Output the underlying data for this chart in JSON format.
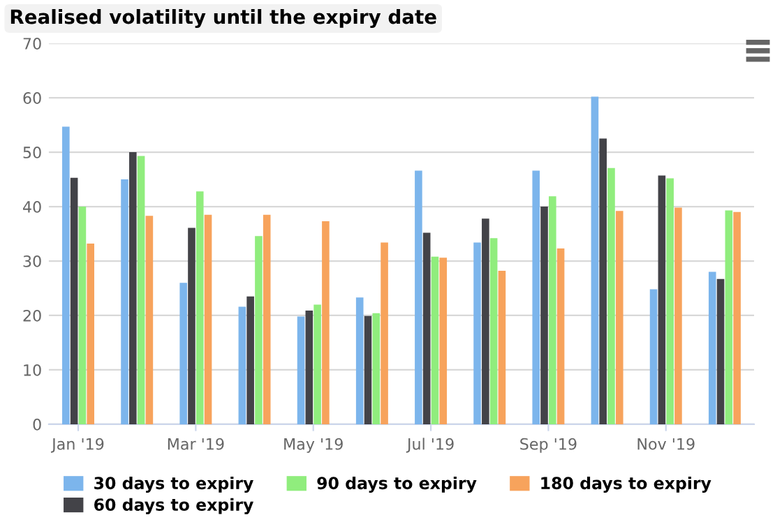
{
  "chart_data": {
    "type": "bar",
    "title": "Realised volatility until the expiry date",
    "categories": [
      "Jan '19",
      null,
      "Mar '19",
      null,
      "May '19",
      null,
      "Jul '19",
      null,
      "Sep '19",
      null,
      "Nov '19",
      null
    ],
    "series": [
      {
        "name": "30 days to expiry",
        "color": "#7cb5ec",
        "values": [
          54.7,
          45,
          26,
          21.6,
          19.8,
          23.3,
          46.6,
          33.4,
          46.6,
          60.2,
          24.8,
          28
        ]
      },
      {
        "name": "60 days to expiry",
        "color": "#434348",
        "values": [
          45.3,
          50,
          36.1,
          23.5,
          20.9,
          19.9,
          35.2,
          37.8,
          40,
          52.5,
          45.7,
          26.7
        ]
      },
      {
        "name": "90 days to expiry",
        "color": "#90ed7d",
        "values": [
          40,
          49.3,
          42.8,
          34.6,
          22,
          20.4,
          30.8,
          34.2,
          41.9,
          47.1,
          45.2,
          39.3
        ]
      },
      {
        "name": "180 days to expiry",
        "color": "#f7a35c",
        "values": [
          33.2,
          38.3,
          38.5,
          38.5,
          37.3,
          33.4,
          30.6,
          28.2,
          32.3,
          39.2,
          39.8,
          39
        ]
      }
    ],
    "ylim": [
      0,
      70
    ],
    "yticks": [
      0,
      10,
      20,
      30,
      40,
      50,
      60,
      70
    ],
    "grid": "y",
    "legend": "bottom"
  }
}
